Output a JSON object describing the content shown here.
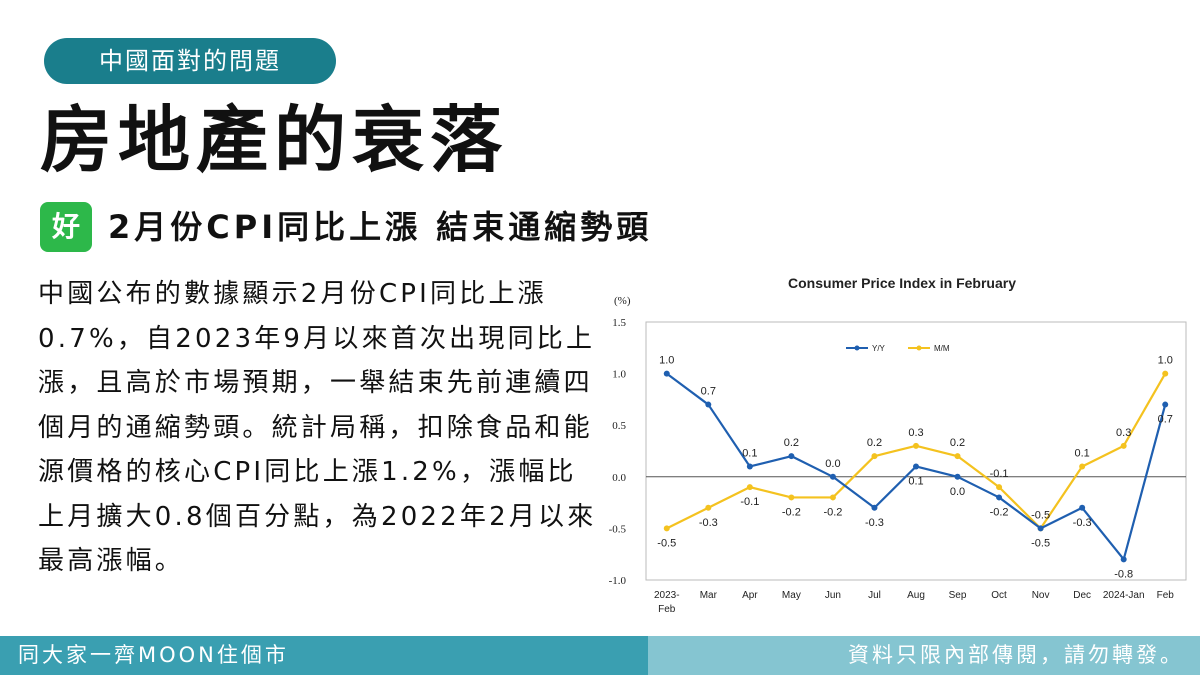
{
  "header": {
    "category": "中國面對的問題",
    "headline": "房地產的衰落",
    "tag": "好",
    "subhead": "2月份CPI同比上漲 結束通縮勢頭"
  },
  "body_text": "中國公布的數據顯示2月份CPI同比上漲0.7%，自2023年9月以來首次出現同比上漲，且高於市場預期，一舉結束先前連續四個月的通縮勢頭。統計局稱，扣除食品和能源價格的核心CPI同比上漲1.2%，漲幅比上月擴大0.8個百分點，為2022年2月以來最高漲幅。",
  "footer": {
    "left": "同大家一齊MOON住個市",
    "right": "資料只限內部傳閱，請勿轉發。"
  },
  "chart_data": {
    "type": "line",
    "title": "Consumer Price Index in February",
    "ylabel": "(%)",
    "xlabel": "",
    "categories": [
      "2023-\nFeb",
      "Mar",
      "Apr",
      "May",
      "Jun",
      "Jul",
      "Aug",
      "Sep",
      "Oct",
      "Nov",
      "Dec",
      "2024-Jan",
      "Feb"
    ],
    "yticks": [
      "1.5",
      "1.0",
      "0.5",
      "0.0",
      "-0.5",
      "-1.0"
    ],
    "ylim": [
      -1.0,
      1.5
    ],
    "legend_position": "top-center",
    "grid": false,
    "series": [
      {
        "name": "Y/Y",
        "color": "#1f5fb0",
        "values": [
          1.0,
          0.7,
          0.1,
          0.2,
          0.0,
          -0.3,
          0.1,
          0.0,
          -0.2,
          -0.5,
          -0.3,
          -0.8,
          0.7
        ],
        "labels": [
          "1.0",
          "0.7",
          "0.1",
          "0.2",
          "0.0",
          "-0.3",
          "0.1",
          "0.0",
          "-0.2",
          "-0.5",
          "-0.3",
          "-0.8",
          "0.7"
        ]
      },
      {
        "name": "M/M",
        "color": "#f4c21f",
        "values": [
          -0.5,
          -0.3,
          -0.1,
          -0.2,
          -0.2,
          0.2,
          0.3,
          0.2,
          -0.1,
          -0.5,
          0.1,
          0.3,
          1.0
        ],
        "labels": [
          "-0.5",
          "-0.3",
          "-0.1",
          "-0.2",
          "-0.2",
          "0.2",
          "0.3",
          "0.2",
          "-0.1",
          "-0.5",
          "0.1",
          "0.3",
          "1.0"
        ]
      }
    ]
  }
}
